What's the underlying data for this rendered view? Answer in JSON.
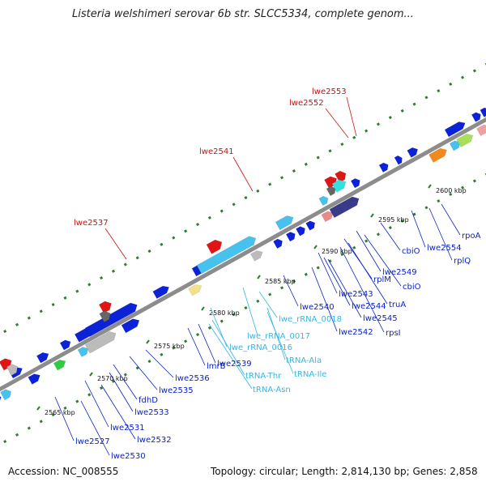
{
  "title": "Listeria welshimeri serovar 6b str. SLCC5334, complete genom...",
  "footer": {
    "accession": "Accession: NC_008555",
    "stats": "Topology: circular; Length: 2,814,130 bp; Genes: 2,858"
  },
  "colors": {
    "backbone": "#8c8c8c",
    "dots": "#2e7d2e",
    "cds": "#0b22d8",
    "trna": "#47c2ee",
    "highlight": "#e01515",
    "gene_label": "#0b22c8",
    "rna_label": "#35b6e6",
    "red_label": "#cc1111"
  },
  "ticks": [
    "2565 kbp",
    "2570 kbp",
    "2575 kbp",
    "2580 kbp",
    "2585 kbp",
    "2590 kbp",
    "2595 kbp",
    "2600 kbp"
  ],
  "labels": {
    "red": [
      "lwe2553",
      "lwe2552",
      "lwe2541",
      "lwe2537"
    ],
    "rna": [
      "lwe_rRNA_0018",
      "lwe_rRNA_0017",
      "lwe_rRNA_0016",
      "tRNA-Ala",
      "tRNA-Ile",
      "tRNA-Thr",
      "tRNA-Asn"
    ],
    "genes": [
      "rpoA",
      "rplQ",
      "lwe2554",
      "cbiO",
      "lwe2549",
      "cbiO",
      "rplM",
      "truA",
      "rpsI",
      "lwe2543",
      "lwe2544",
      "lwe2545",
      "lwe2540",
      "lwe2542",
      "lmrB",
      "lwe2539",
      "lwe2536",
      "lwe2535",
      "fdhD",
      "lwe2533",
      "lwe2531",
      "lwe2532",
      "lwe2527",
      "lwe2530"
    ]
  }
}
